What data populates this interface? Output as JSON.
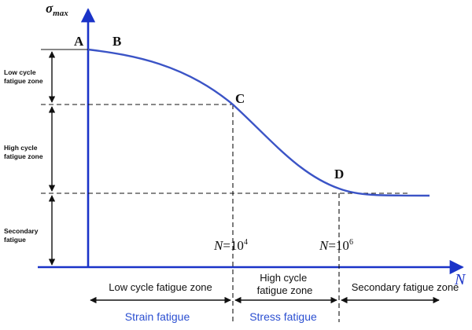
{
  "axes": {
    "y_label": "σ",
    "y_label_sub": "max",
    "x_label": "N"
  },
  "curve_points": {
    "A": "A",
    "B": "B",
    "C": "C",
    "D": "D"
  },
  "cycle_marks": {
    "n4_prefix": "N",
    "n4_eq": "=10",
    "n4_exp": "4",
    "n6_prefix": "N",
    "n6_eq": "=10",
    "n6_exp": "6"
  },
  "left_zones": {
    "low": [
      "Low cycle",
      "fatigue zone"
    ],
    "high": [
      "High cycle",
      "fatigue zone"
    ],
    "secondary": [
      "Secondary",
      "fatigue"
    ]
  },
  "bottom_zones": {
    "low": "Low cycle fatigue zone",
    "high": [
      "High cycle",
      "fatigue zone"
    ],
    "secondary": "Secondary fatigue zone"
  },
  "fatigue_types": {
    "strain": "Strain fatigue",
    "stress": "Stress fatigue"
  },
  "colors": {
    "curve": "#3b54c6",
    "axis": "#1a33c8",
    "type_text": "#2b4fd1",
    "black": "#111111"
  }
}
